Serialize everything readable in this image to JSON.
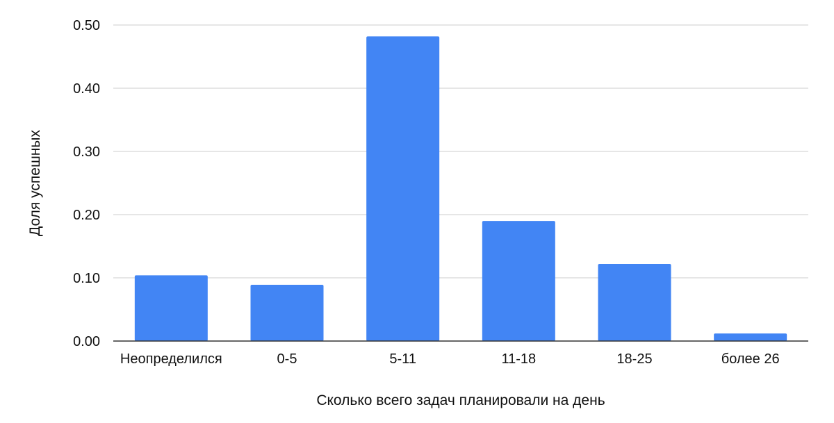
{
  "chart_data": {
    "type": "bar",
    "title": "",
    "xlabel": "Сколько всего задач планировали на день",
    "ylabel": "Доля успешных",
    "categories": [
      "Неопределился",
      "0-5",
      "5-11",
      "11-18",
      "18-25",
      "более 26"
    ],
    "values": [
      0.104,
      0.089,
      0.482,
      0.19,
      0.122,
      0.012
    ],
    "ylim": [
      0,
      0.5
    ],
    "yticks": [
      "0.00",
      "0.10",
      "0.20",
      "0.30",
      "0.40",
      "0.50"
    ],
    "grid": true,
    "legend": "none",
    "bar_color": "#4285f4"
  }
}
